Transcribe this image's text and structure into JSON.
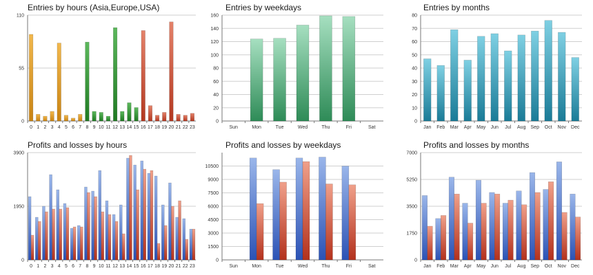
{
  "colors": {
    "gridline": "#cfcfcf",
    "axis": "#777777",
    "asia_top": "#f2b84d",
    "asia_bottom": "#c98312",
    "europe_top": "#5cb85c",
    "europe_bottom": "#1f7a22",
    "usa_top": "#e4826a",
    "usa_bottom": "#b3371f",
    "weekday_top": "#a6dfc0",
    "weekday_bottom": "#2e8b57",
    "month_top": "#7fd0e3",
    "month_bottom": "#1a7b97",
    "profit_top": "#9ab6ea",
    "profit_bottom": "#2b52b5",
    "loss_top": "#f0a08a",
    "loss_bottom": "#b3311c"
  },
  "chart_data": [
    {
      "id": "hours",
      "type": "bar",
      "title": "Entries by hours (Asia,Europe,USA)",
      "categories": [
        "0",
        "1",
        "2",
        "3",
        "4",
        "5",
        "6",
        "7",
        "8",
        "9",
        "10",
        "11",
        "12",
        "13",
        "14",
        "15",
        "16",
        "17",
        "18",
        "19",
        "20",
        "21",
        "22",
        "23"
      ],
      "values": [
        90,
        7,
        5,
        10,
        81,
        6,
        3,
        7,
        82,
        10,
        9,
        5,
        97,
        10,
        19,
        14,
        94,
        16,
        6,
        9,
        103,
        7,
        6,
        8
      ],
      "bar_groups": [
        "asia",
        "asia",
        "asia",
        "asia",
        "asia",
        "asia",
        "asia",
        "asia",
        "europe",
        "europe",
        "europe",
        "europe",
        "europe",
        "europe",
        "europe",
        "europe",
        "usa",
        "usa",
        "usa",
        "usa",
        "usa",
        "usa",
        "usa",
        "usa"
      ],
      "ylim": [
        0,
        110
      ],
      "yticks": [
        0,
        55,
        110
      ],
      "grid": true
    },
    {
      "id": "weekdays",
      "type": "bar",
      "title": "Entries by weekdays",
      "categories": [
        "Sun",
        "Mon",
        "Tue",
        "Wed",
        "Thu",
        "Fri",
        "Sat"
      ],
      "values": [
        0,
        124,
        125,
        145,
        159,
        158,
        0
      ],
      "ylim": [
        0,
        160
      ],
      "yticks": [
        0,
        20,
        40,
        60,
        80,
        100,
        120,
        140,
        160
      ],
      "grid": true
    },
    {
      "id": "months",
      "type": "bar",
      "title": "Entries by months",
      "categories": [
        "Jan",
        "Feb",
        "Mar",
        "Apr",
        "May",
        "Jun",
        "Jul",
        "Aug",
        "Sep",
        "Oct",
        "Nov",
        "Dec"
      ],
      "values": [
        47,
        42,
        69,
        46,
        64,
        66,
        53,
        65,
        68,
        76,
        67,
        48
      ],
      "ylim": [
        0,
        80
      ],
      "yticks": [
        0,
        10,
        20,
        30,
        40,
        50,
        60,
        70,
        80
      ],
      "grid": true
    },
    {
      "id": "pl-hours",
      "type": "bar",
      "title": "Profits and losses by hours",
      "categories": [
        "0",
        "1",
        "2",
        "3",
        "4",
        "5",
        "6",
        "7",
        "8",
        "9",
        "10",
        "11",
        "12",
        "13",
        "14",
        "15",
        "16",
        "17",
        "18",
        "19",
        "20",
        "21",
        "22",
        "23"
      ],
      "series": [
        {
          "key": "profit",
          "values": [
            2300,
            1550,
            1950,
            3100,
            2550,
            2050,
            1150,
            1250,
            2650,
            2500,
            3250,
            2150,
            1650,
            2000,
            3700,
            3450,
            3600,
            3150,
            3050,
            2000,
            2800,
            1550,
            1500,
            1120
          ]
        },
        {
          "key": "loss",
          "values": [
            900,
            1400,
            1750,
            1850,
            1850,
            1900,
            1200,
            1200,
            2450,
            2300,
            1750,
            1650,
            1400,
            950,
            3800,
            2550,
            3300,
            3250,
            600,
            1250,
            1950,
            2150,
            750,
            1120
          ]
        }
      ],
      "ylim": [
        0,
        3900
      ],
      "yticks": [
        0,
        1950,
        3900
      ],
      "grid": true
    },
    {
      "id": "pl-weekdays",
      "type": "bar",
      "title": "Profits and losses by weekdays",
      "categories": [
        "Sun",
        "Mon",
        "Tue",
        "Wed",
        "Thu",
        "Fri",
        "Sat"
      ],
      "series": [
        {
          "key": "profit",
          "values": [
            0,
            11400,
            10100,
            11400,
            11500,
            10500,
            0
          ]
        },
        {
          "key": "loss",
          "values": [
            0,
            6300,
            8700,
            11000,
            8500,
            8400,
            0
          ]
        }
      ],
      "ylim": [
        0,
        12000
      ],
      "yticks": [
        0,
        1500,
        3000,
        4500,
        6000,
        7500,
        9000,
        10500
      ],
      "grid": true
    },
    {
      "id": "pl-months",
      "type": "bar",
      "title": "Profits and losses by months",
      "categories": [
        "Jan",
        "Feb",
        "Mar",
        "Apr",
        "May",
        "Jun",
        "Jul",
        "Aug",
        "Sep",
        "Oct",
        "Nov",
        "Dec"
      ],
      "series": [
        {
          "key": "profit",
          "values": [
            4200,
            2700,
            5400,
            3700,
            5200,
            4400,
            3700,
            4500,
            5700,
            4600,
            6400,
            4300
          ]
        },
        {
          "key": "loss",
          "values": [
            2200,
            2900,
            4300,
            2400,
            3700,
            4300,
            3900,
            3600,
            4400,
            5100,
            3100,
            2800
          ]
        }
      ],
      "ylim": [
        0,
        7000
      ],
      "yticks": [
        0,
        1750,
        3500,
        5250,
        7000
      ],
      "grid": true
    }
  ]
}
